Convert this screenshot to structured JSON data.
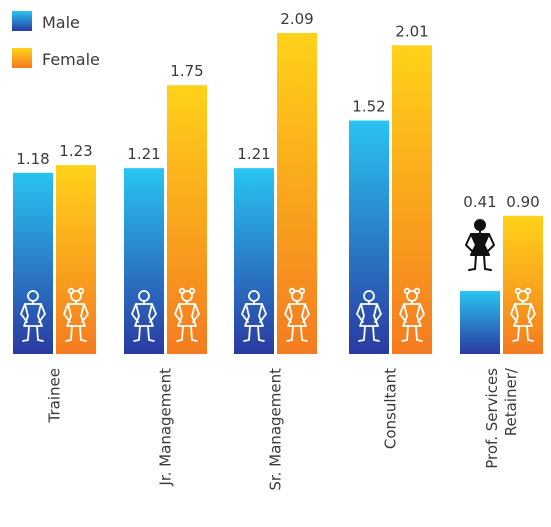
{
  "chart_data": {
    "type": "bar",
    "categories": [
      [
        "Trainee"
      ],
      [
        "Jr. Management"
      ],
      [
        "Sr. Management"
      ],
      [
        "Consultant"
      ],
      [
        "Retainer/",
        "Prof. Services"
      ]
    ],
    "series": [
      {
        "name": "Male",
        "values": [
          1.18,
          1.21,
          1.21,
          1.52,
          0.41
        ],
        "labels": [
          "1.18",
          "1.21",
          "1.21",
          "1.52",
          "0.41"
        ],
        "gradient": [
          "#29c4f1",
          "#2a3aa1"
        ]
      },
      {
        "name": "Female",
        "values": [
          1.23,
          1.75,
          2.09,
          2.01,
          0.9
        ],
        "labels": [
          "1.23",
          "1.75",
          "2.09",
          "2.01",
          "0.90"
        ],
        "gradient": [
          "#ffd21a",
          "#f47b20"
        ]
      }
    ],
    "ylim": [
      0,
      2.2
    ],
    "grid": false,
    "legend": "top-left",
    "figure_icons": [
      "stick-figure-male-icon",
      "stick-figure-female-icon"
    ]
  }
}
